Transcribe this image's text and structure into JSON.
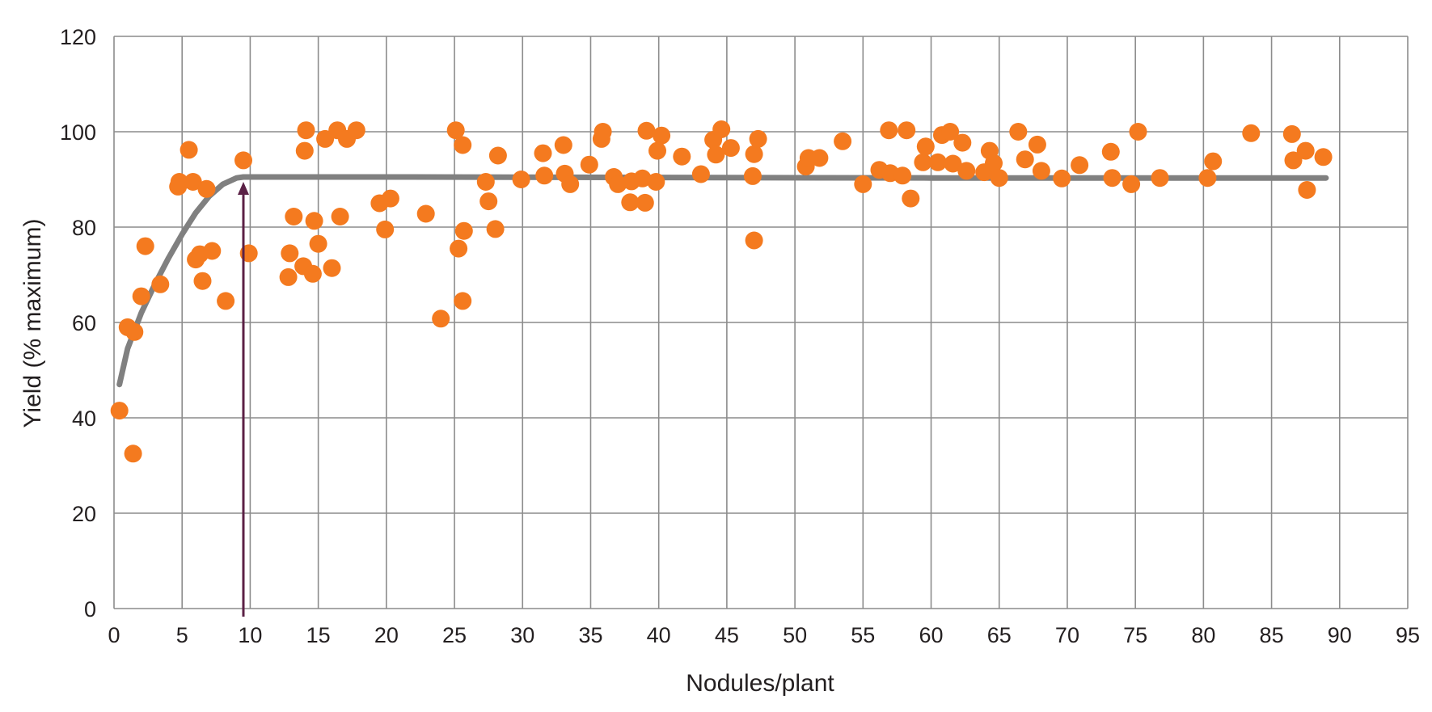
{
  "chart_data": {
    "type": "scatter",
    "title": "",
    "xlabel": "Nodules/plant",
    "ylabel": "Yield (% maximum)",
    "xlim": [
      0,
      95
    ],
    "ylim": [
      0,
      120
    ],
    "x_ticks": [
      0,
      5,
      10,
      15,
      20,
      25,
      30,
      35,
      40,
      45,
      50,
      55,
      60,
      65,
      70,
      75,
      80,
      85,
      90,
      95
    ],
    "y_ticks": [
      0,
      20,
      40,
      60,
      80,
      100,
      120
    ],
    "grid": true,
    "legend": "none",
    "colors": {
      "points": "#f47a1f",
      "trend": "#808080",
      "marker": "#5b2146",
      "grid": "#8c8c8c",
      "text": "#231f20"
    },
    "annotation": {
      "type": "vertical-arrow",
      "x": 9.5
    },
    "trend_line": {
      "x": [
        0.4,
        1,
        2,
        3,
        4,
        5,
        6,
        7,
        8,
        9,
        9.5,
        10,
        20,
        40,
        60,
        80,
        89
      ],
      "y": [
        47,
        54.5,
        62,
        68,
        73.5,
        78.5,
        83,
        86.5,
        89,
        90.3,
        90.5,
        90.5,
        90.5,
        90.4,
        90.3,
        90.3,
        90.3
      ]
    },
    "points": {
      "x": [
        0.4,
        1.0,
        1.4,
        1.5,
        2.0,
        2.3,
        3.4,
        4.7,
        4.8,
        5.5,
        5.8,
        6.0,
        6.3,
        6.5,
        6.8,
        7.2,
        8.2,
        9.5,
        9.9,
        12.8,
        12.9,
        13.2,
        13.9,
        14.0,
        14.1,
        14.6,
        14.7,
        15.0,
        15.5,
        16.0,
        16.4,
        16.6,
        17.1,
        17.8,
        19.5,
        19.9,
        20.3,
        22.9,
        24.0,
        25.1,
        25.3,
        25.6,
        25.6,
        25.7,
        27.3,
        27.5,
        28.0,
        28.2,
        29.9,
        31.5,
        31.6,
        33.0,
        33.1,
        33.5,
        34.9,
        35.8,
        35.9,
        36.7,
        37.0,
        37.9,
        38.0,
        38.8,
        39.0,
        39.1,
        39.8,
        39.9,
        40.2,
        41.7,
        43.1,
        44.0,
        44.2,
        44.6,
        45.3,
        46.9,
        47.0,
        47.0,
        47.3,
        50.8,
        51.0,
        51.8,
        53.5,
        55.0,
        56.2,
        56.9,
        57.0,
        57.9,
        58.2,
        58.5,
        59.4,
        59.6,
        60.5,
        60.8,
        61.4,
        61.6,
        62.3,
        62.6,
        63.9,
        64.3,
        64.6,
        65.0,
        66.4,
        66.9,
        67.8,
        68.1,
        69.6,
        70.9,
        73.2,
        73.3,
        74.7,
        75.2,
        76.8,
        80.3,
        80.7,
        83.5,
        86.5,
        86.6,
        87.5,
        87.6,
        88.8
      ],
      "y": [
        41.5,
        59,
        32.5,
        58,
        65.5,
        76,
        68,
        88.5,
        89.5,
        96.2,
        89.5,
        73.2,
        74.3,
        68.7,
        88,
        75,
        64.5,
        94,
        74.5,
        69.5,
        74.5,
        82.2,
        71.8,
        96,
        100.3,
        70.2,
        81.3,
        76.5,
        98.5,
        71.4,
        100.3,
        82.2,
        98.5,
        100.3,
        85,
        79.5,
        86,
        82.8,
        60.8,
        100.3,
        75.5,
        97.2,
        64.5,
        79.2,
        89.5,
        85.4,
        79.6,
        95,
        90,
        95.5,
        90.8,
        97.2,
        91.2,
        89,
        93.1,
        98.5,
        100,
        90.5,
        89,
        85.2,
        89.6,
        90.2,
        85.1,
        100.2,
        89.5,
        96,
        99.2,
        94.8,
        91.1,
        98.3,
        95.2,
        100.5,
        96.6,
        90.7,
        77.2,
        95.3,
        98.5,
        92.7,
        94.5,
        94.5,
        98,
        89,
        92,
        100.3,
        91.3,
        90.8,
        100.3,
        86,
        93.6,
        96.9,
        93.6,
        99.3,
        100,
        93.3,
        97.7,
        91.8,
        91.5,
        96,
        93.4,
        90.3,
        100,
        94.2,
        97.3,
        91.8,
        90.2,
        93,
        95.8,
        90.3,
        89,
        100,
        90.3,
        90.3,
        93.8,
        99.7,
        99.5,
        94,
        96,
        87.8,
        94.7
      ]
    }
  }
}
